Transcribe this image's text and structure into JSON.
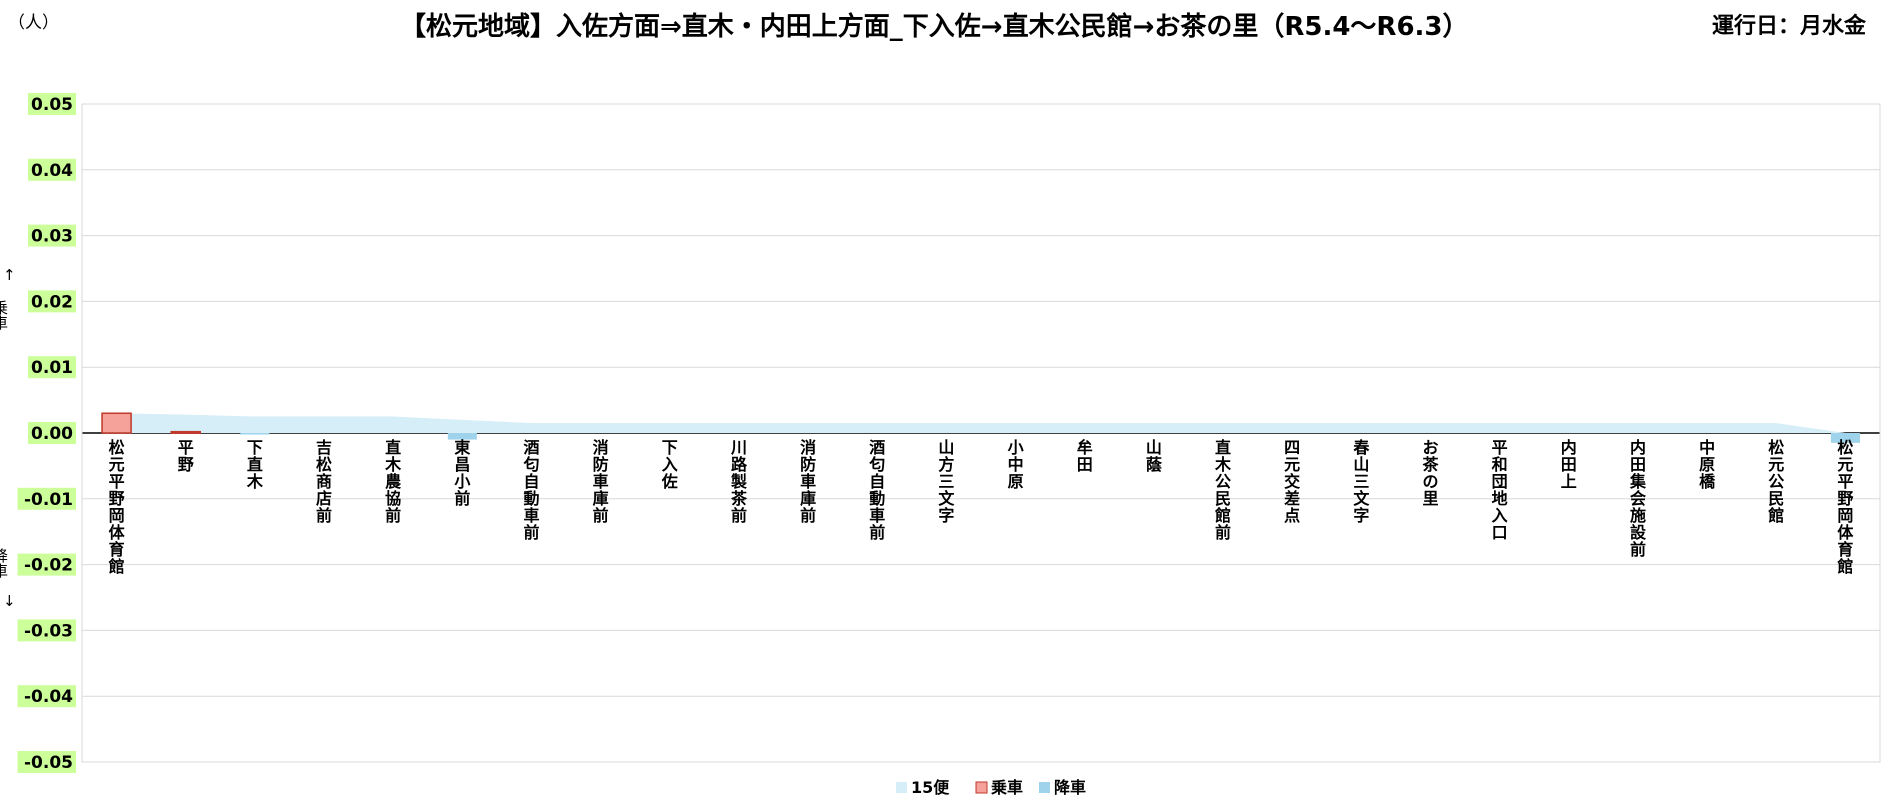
{
  "header": {
    "unit": "（人）",
    "title": "【松元地域】入佐方面⇒直木・内田上方面_下入佐→直木公民館→お茶の里（R5.4～R6.3）",
    "operating_days": "運行日：月水金"
  },
  "side_labels": {
    "up_arrow": "↑",
    "boarding": "乗車",
    "alighting": "降車",
    "down_arrow": "↓"
  },
  "chart_data": {
    "type": "bar",
    "title": "【松元地域】入佐方面⇒直木・内田上方面_下入佐→直木公民館→お茶の里（R5.4～R6.3）",
    "ylabel": "（人）",
    "ylim": [
      -0.05,
      0.05
    ],
    "y_ticks": [
      "0.05",
      "0.04",
      "0.03",
      "0.02",
      "0.01",
      "0.00",
      "-0.01",
      "-0.02",
      "-0.03",
      "-0.04",
      "-0.05"
    ],
    "y_tick_values": [
      0.05,
      0.04,
      0.03,
      0.02,
      0.01,
      0,
      -0.01,
      -0.02,
      -0.03,
      -0.04,
      -0.05
    ],
    "grid": true,
    "legend_position": "bottom",
    "categories": [
      "松元平野岡体育館",
      "平野",
      "下直木",
      "吉松商店前",
      "直木農協前",
      "東昌小前",
      "酒匂自動車前",
      "消防車庫前",
      "下入佐",
      "川路製茶前",
      "消防車庫前",
      "酒匂自動車前",
      "山方三文字",
      "小中原",
      "牟田",
      "山蔭",
      "直木公民館前",
      "四元交差点",
      "春山三文字",
      "お茶の里",
      "平和団地入口",
      "内田上",
      "内田集会施設前",
      "中原橋",
      "松元公民館",
      "松元平野岡体育館"
    ],
    "series": [
      {
        "name": "15便",
        "type": "area",
        "color": "#d6eef8",
        "values": [
          0.003,
          0.0028,
          0.0025,
          0.0025,
          0.0025,
          0.002,
          0.0015,
          0.0015,
          0.0015,
          0.0015,
          0.0015,
          0.0015,
          0.0015,
          0.0015,
          0.0015,
          0.0015,
          0.0015,
          0.0015,
          0.0015,
          0.0015,
          0.0015,
          0.0015,
          0.0015,
          0.0015,
          0.0015,
          0
        ]
      },
      {
        "name": "乗車",
        "type": "bar",
        "color": "#f4a29a",
        "border": "#c0392b",
        "values": [
          0.003,
          0.0002,
          0,
          0,
          0,
          0,
          0,
          0,
          0,
          0,
          0,
          0,
          0,
          0,
          0,
          0,
          0,
          0,
          0,
          0,
          0,
          0,
          0,
          0,
          0,
          0
        ]
      },
      {
        "name": "降車",
        "type": "bar",
        "color": "#9fd3ec",
        "values": [
          0,
          0,
          -0.0002,
          0,
          0,
          -0.001,
          0,
          0,
          0,
          0,
          0,
          0,
          0,
          0,
          0,
          0,
          0,
          0,
          0,
          0,
          0,
          0,
          0,
          0,
          0,
          -0.0015
        ]
      }
    ]
  }
}
